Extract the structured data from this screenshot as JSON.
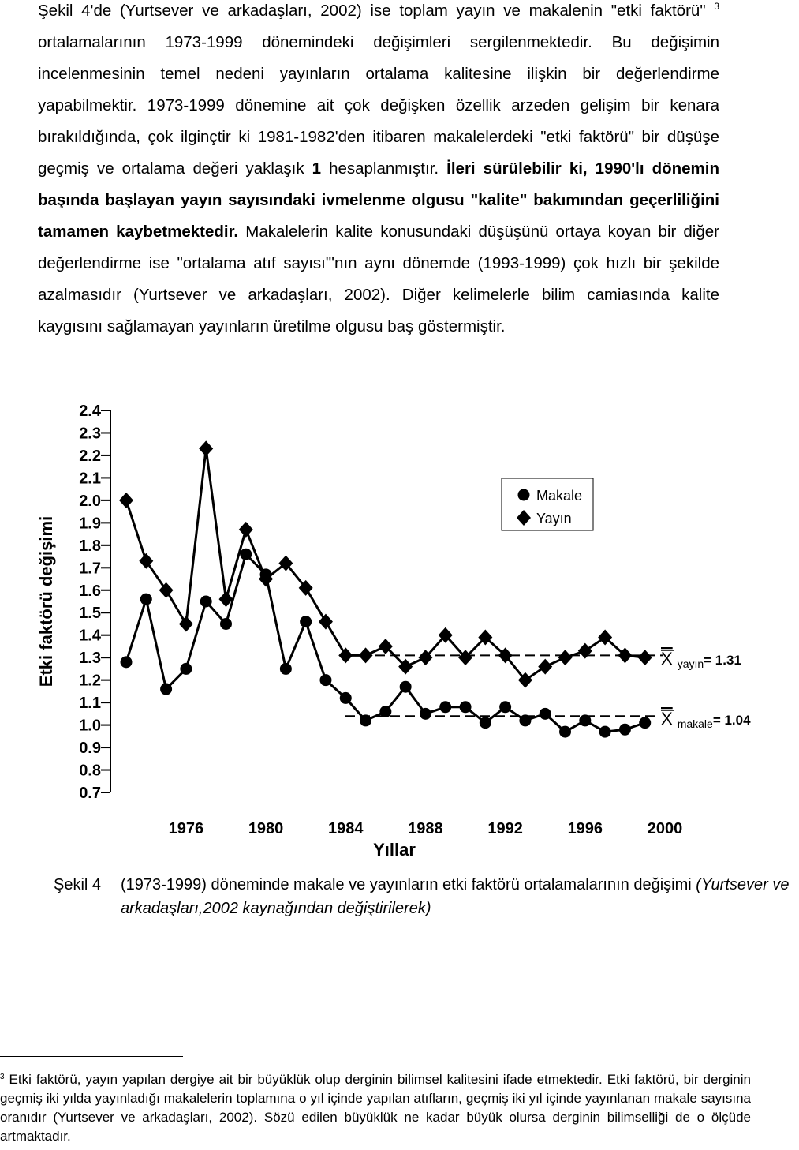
{
  "paragraph": [
    "Şekil 4'de (Yurtsever ve arkadaşları, 2002) ise toplam yayın ve makalenin \"etki faktörü\" ",
    "3",
    " ortalamalarının 1973-1999 dönemindeki değişimleri sergilenmektedir. Bu değişimin incelenmesinin temel nedeni yayınların ortalama kalitesine ilişkin bir değerlendirme yapabilmektir. 1973-1999 dönemine ait çok değişken özellik arzeden gelişim bir kenara bırakıldığında, çok ilginçtir ki 1981-1982'den itibaren makalelerdeki \"etki faktörü\" bir düşüşe geçmiş ve ortalama değeri yaklaşık ",
    "1",
    " hesaplanmıştır. ",
    "İleri sürülebilir ki, 1990'lı dönemin başında başlayan yayın sayısındaki ivmelenme olgusu \"kalite\" bakımından geçerliliğini tamamen kaybetmektedir.",
    " Makalelerin kalite konusundaki düşüşünü ortaya koyan bir diğer değerlendirme ise \"ortalama atıf sayısı\"'nın aynı dönemde (1993-1999) çok hızlı bir şekilde azalmasıdır (Yurtsever ve arkadaşları, 2002). Diğer kelimelerle bilim camiasında kalite kaygısını sağlamayan yayınların üretilme olgusu baş göstermiştir."
  ],
  "chart_data": {
    "type": "line",
    "x_label": "Yıllar",
    "y_label": "Etki faktörü değişimi",
    "x": [
      1973,
      1974,
      1975,
      1976,
      1977,
      1978,
      1979,
      1980,
      1981,
      1982,
      1983,
      1984,
      1985,
      1986,
      1987,
      1988,
      1989,
      1990,
      1991,
      1992,
      1993,
      1994,
      1995,
      1996,
      1997,
      1998,
      1999
    ],
    "series": [
      {
        "name": "Makale",
        "color": "#000000",
        "marker": "circle",
        "values": [
          1.28,
          1.56,
          1.16,
          1.25,
          1.55,
          1.45,
          1.76,
          1.67,
          1.25,
          1.46,
          1.2,
          1.12,
          1.02,
          1.06,
          1.17,
          1.05,
          1.08,
          1.08,
          1.01,
          1.08,
          1.02,
          1.05,
          0.97,
          1.02,
          0.97,
          0.98,
          1.01
        ]
      },
      {
        "name": "Yayın",
        "color": "#000000",
        "marker": "diamond",
        "values": [
          2.0,
          1.73,
          1.6,
          1.45,
          2.23,
          1.56,
          1.87,
          1.65,
          1.72,
          1.61,
          1.46,
          1.31,
          1.31,
          1.35,
          1.26,
          1.3,
          1.4,
          1.3,
          1.39,
          1.31,
          1.2,
          1.26,
          1.3,
          1.33,
          1.39,
          1.31,
          1.3
        ]
      }
    ],
    "xlim": [
      1973,
      2000
    ],
    "xticks": [
      1976,
      1980,
      1984,
      1988,
      1992,
      1996,
      2000
    ],
    "ylim": [
      0.7,
      2.4
    ],
    "yticks": [
      {
        "value": 0.7,
        "label": "0.7"
      },
      {
        "value": 0.8,
        "label": "0.8"
      },
      {
        "value": 0.9,
        "label": "0.9"
      },
      {
        "value": 1,
        "label": "1.0"
      },
      {
        "value": 1.1,
        "label": "1.1"
      },
      {
        "value": 1.2,
        "label": "1.2"
      },
      {
        "value": 1.3,
        "label": "1.3"
      },
      {
        "value": 1.4,
        "label": "1.4"
      },
      {
        "value": 1.5,
        "label": "1.5"
      },
      {
        "value": 1.6,
        "label": "1.6"
      },
      {
        "value": 1.7,
        "label": "1.7"
      },
      {
        "value": 1.8,
        "label": "1.8"
      },
      {
        "value": 1.9,
        "label": "1.9"
      },
      {
        "value": 2,
        "label": "2.0"
      },
      {
        "value": 2.1,
        "label": "2.1"
      },
      {
        "value": 2.2,
        "label": "2.2"
      },
      {
        "value": 2.3,
        "label": "2.3"
      },
      {
        "value": 2.4,
        "label": "2.4"
      }
    ],
    "mean_lines": [
      {
        "symbol": "X",
        "sub": "yayın",
        "label": "= 1.31",
        "value": 1.31
      },
      {
        "symbol": "X",
        "sub": "makale",
        "label": "= 1.04",
        "value": 1.04
      }
    ]
  },
  "caption": [
    "Şekil 4",
    "(1973-1999) döneminde makale ve yayınların etki faktörü ortalamalarının değişimi ",
    "(Yurtsever ve arkadaşları,2002 kaynağından değiştirilerek)"
  ],
  "footnote": {
    "mark": "3",
    "text": "Etki faktörü, yayın yapılan dergiye ait bir büyüklük olup derginin bilimsel kalitesini ifade etmektedir. Etki faktörü, bir derginin geçmiş iki yılda yayınladığı makalelerin toplamına o yıl içinde yapılan atıfların, geçmiş iki yıl içinde yayınlanan makale sayısına oranıdır (Yurtsever ve arkadaşları, 2002). Sözü edilen büyüklük ne kadar büyük olursa derginin bilimselliği de o ölçüde artmaktadır."
  }
}
